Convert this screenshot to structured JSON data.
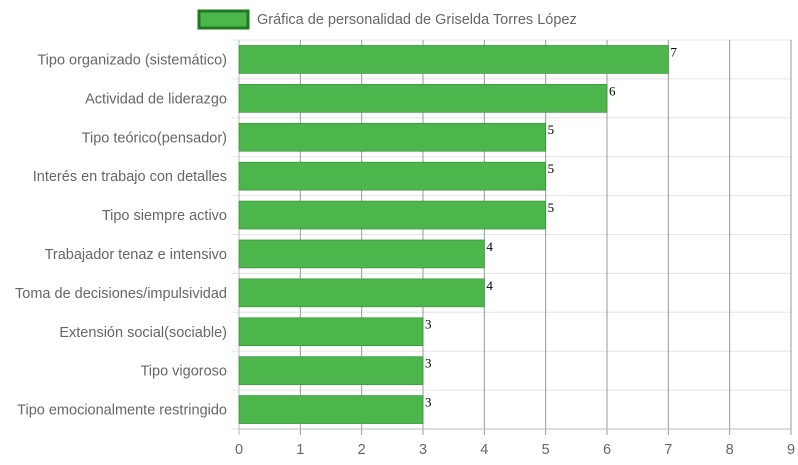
{
  "chart_data": {
    "type": "bar",
    "orientation": "horizontal",
    "categories": [
      "Tipo organizado (sistemático)",
      "Actividad de liderazgo",
      "Tipo teórico(pensador)",
      "Interés en trabajo con detalles",
      "Tipo siempre activo",
      "Trabajador tenaz e intensivo",
      "Toma de decisiones/impulsividad",
      "Extensión social(sociable)",
      "Tipo vigoroso",
      "Tipo emocionalmente restringido"
    ],
    "series": [
      {
        "name": "Gráfica de personalidad de Griselda Torres López",
        "values": [
          7,
          6,
          5,
          5,
          5,
          4,
          4,
          3,
          3,
          3
        ],
        "color": "#4cb54c",
        "border_color": "#2e8b2e"
      }
    ],
    "xlim": [
      0,
      9
    ],
    "x_ticks": [
      "0",
      "1",
      "2",
      "3",
      "4",
      "5",
      "6",
      "7",
      "8",
      "9"
    ],
    "grid": true,
    "legend": "top-center",
    "title": "",
    "xlabel": "",
    "ylabel": ""
  }
}
